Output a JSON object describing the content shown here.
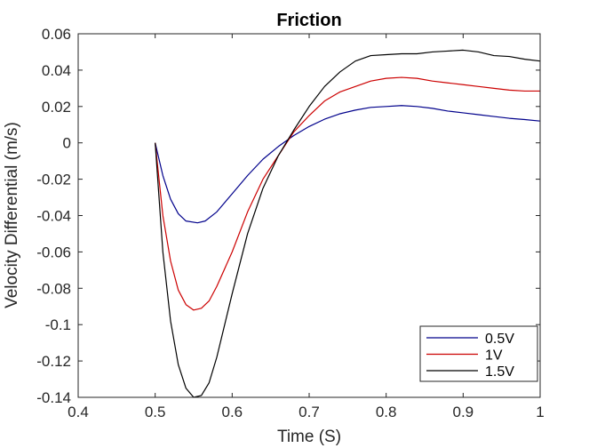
{
  "chart_data": {
    "type": "line",
    "title": "Friction",
    "xlabel": "Time (S)",
    "ylabel": "Velocity Differential (m/s)",
    "xlim": [
      0.4,
      1.0
    ],
    "ylim": [
      -0.14,
      0.06
    ],
    "xticks": [
      "0.4",
      "0.5",
      "0.6",
      "0.7",
      "0.8",
      "0.9",
      "1"
    ],
    "yticks": [
      "0.06",
      "0.04",
      "0.02",
      "0",
      "-0.02",
      "-0.04",
      "-0.06",
      "-0.08",
      "-0.1",
      "-0.12",
      "-0.14"
    ],
    "grid": false,
    "legend_position": "bottom-right",
    "series": [
      {
        "name": "0.5V",
        "color": "#00008b",
        "points": [
          [
            0.5,
            0.0
          ],
          [
            0.51,
            -0.018
          ],
          [
            0.52,
            -0.031
          ],
          [
            0.53,
            -0.039
          ],
          [
            0.54,
            -0.043
          ],
          [
            0.555,
            -0.044
          ],
          [
            0.565,
            -0.043
          ],
          [
            0.58,
            -0.038
          ],
          [
            0.6,
            -0.028
          ],
          [
            0.62,
            -0.018
          ],
          [
            0.64,
            -0.009
          ],
          [
            0.66,
            -0.002
          ],
          [
            0.68,
            0.004
          ],
          [
            0.7,
            0.009
          ],
          [
            0.72,
            0.013
          ],
          [
            0.74,
            0.016
          ],
          [
            0.76,
            0.018
          ],
          [
            0.78,
            0.0195
          ],
          [
            0.8,
            0.02
          ],
          [
            0.82,
            0.0205
          ],
          [
            0.84,
            0.02
          ],
          [
            0.86,
            0.019
          ],
          [
            0.88,
            0.0175
          ],
          [
            0.9,
            0.0165
          ],
          [
            0.92,
            0.0155
          ],
          [
            0.94,
            0.0145
          ],
          [
            0.96,
            0.0135
          ],
          [
            0.98,
            0.0128
          ],
          [
            1.0,
            0.012
          ]
        ]
      },
      {
        "name": "1V",
        "color": "#cc0000",
        "points": [
          [
            0.5,
            0.0
          ],
          [
            0.505,
            -0.02
          ],
          [
            0.51,
            -0.04
          ],
          [
            0.52,
            -0.065
          ],
          [
            0.53,
            -0.081
          ],
          [
            0.54,
            -0.089
          ],
          [
            0.55,
            -0.092
          ],
          [
            0.56,
            -0.091
          ],
          [
            0.57,
            -0.087
          ],
          [
            0.58,
            -0.079
          ],
          [
            0.6,
            -0.06
          ],
          [
            0.62,
            -0.038
          ],
          [
            0.64,
            -0.02
          ],
          [
            0.66,
            -0.007
          ],
          [
            0.68,
            0.006
          ],
          [
            0.7,
            0.015
          ],
          [
            0.72,
            0.023
          ],
          [
            0.74,
            0.028
          ],
          [
            0.76,
            0.031
          ],
          [
            0.78,
            0.034
          ],
          [
            0.8,
            0.0355
          ],
          [
            0.82,
            0.036
          ],
          [
            0.84,
            0.0355
          ],
          [
            0.86,
            0.034
          ],
          [
            0.88,
            0.033
          ],
          [
            0.9,
            0.032
          ],
          [
            0.92,
            0.031
          ],
          [
            0.94,
            0.03
          ],
          [
            0.96,
            0.029
          ],
          [
            0.98,
            0.0285
          ],
          [
            1.0,
            0.0285
          ]
        ]
      },
      {
        "name": "1.5V",
        "color": "#000000",
        "points": [
          [
            0.5,
            0.0
          ],
          [
            0.505,
            -0.03
          ],
          [
            0.51,
            -0.06
          ],
          [
            0.52,
            -0.098
          ],
          [
            0.53,
            -0.122
          ],
          [
            0.54,
            -0.135
          ],
          [
            0.55,
            -0.14
          ],
          [
            0.56,
            -0.139
          ],
          [
            0.57,
            -0.132
          ],
          [
            0.58,
            -0.118
          ],
          [
            0.6,
            -0.083
          ],
          [
            0.62,
            -0.05
          ],
          [
            0.64,
            -0.025
          ],
          [
            0.66,
            -0.007
          ],
          [
            0.68,
            0.007
          ],
          [
            0.7,
            0.02
          ],
          [
            0.72,
            0.031
          ],
          [
            0.74,
            0.039
          ],
          [
            0.76,
            0.045
          ],
          [
            0.78,
            0.048
          ],
          [
            0.8,
            0.0485
          ],
          [
            0.82,
            0.049
          ],
          [
            0.84,
            0.049
          ],
          [
            0.86,
            0.05
          ],
          [
            0.88,
            0.0505
          ],
          [
            0.9,
            0.051
          ],
          [
            0.92,
            0.05
          ],
          [
            0.94,
            0.048
          ],
          [
            0.96,
            0.0475
          ],
          [
            0.98,
            0.046
          ],
          [
            1.0,
            0.045
          ]
        ]
      }
    ]
  }
}
